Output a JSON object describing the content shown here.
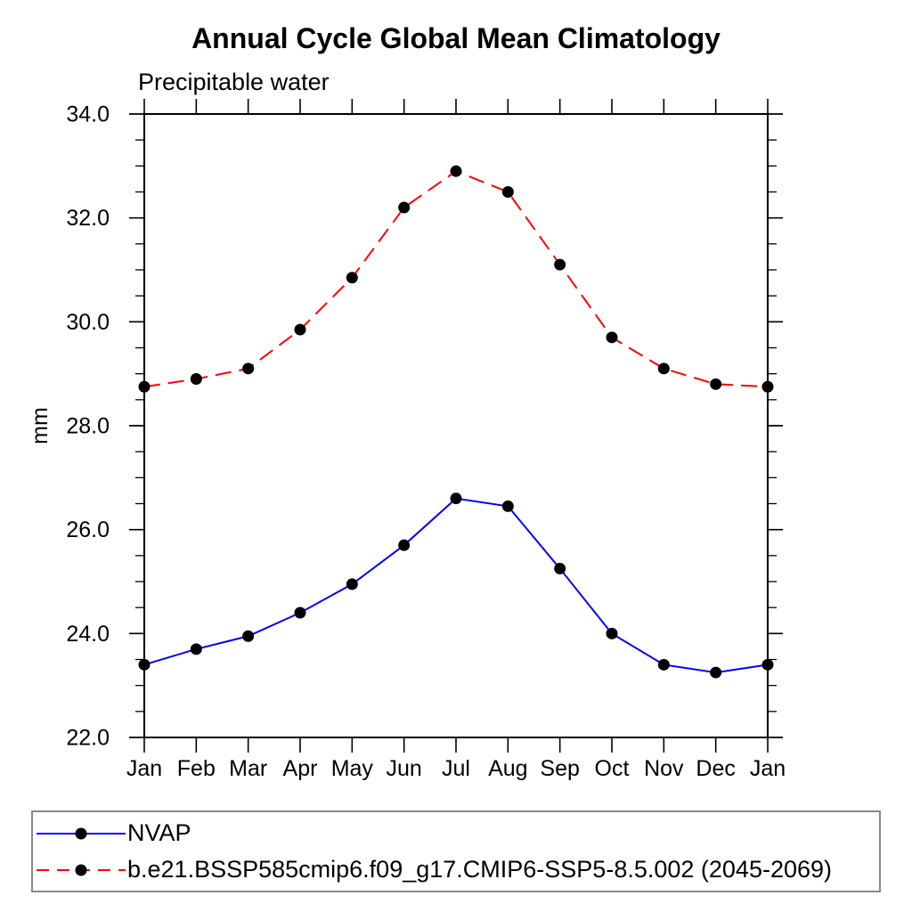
{
  "title": "Annual Cycle Global Mean Climatology",
  "subtitle": "Precipitable water",
  "y_axis": {
    "label": "mm",
    "tick_labels": [
      "22.0",
      "24.0",
      "26.0",
      "28.0",
      "30.0",
      "32.0",
      "34.0"
    ]
  },
  "x_axis": {
    "tick_labels": [
      "Jan",
      "Feb",
      "Mar",
      "Apr",
      "May",
      "Jun",
      "Jul",
      "Aug",
      "Sep",
      "Oct",
      "Nov",
      "Dec",
      "Jan"
    ]
  },
  "legend": {
    "items": [
      {
        "label": "NVAP",
        "color": "#0000ff",
        "line_style": "solid",
        "marker_color": "#000000"
      },
      {
        "label": "b.e21.BSSP585cmip6.f09_g17.CMIP6-SSP5-8.5.002 (2045-2069)",
        "color": "#ff0000",
        "line_style": "dashed",
        "marker_color": "#000000"
      }
    ]
  },
  "chart_data": {
    "type": "line",
    "x": [
      "Jan",
      "Feb",
      "Mar",
      "Apr",
      "May",
      "Jun",
      "Jul",
      "Aug",
      "Sep",
      "Oct",
      "Nov",
      "Dec",
      "Jan"
    ],
    "series": [
      {
        "name": "NVAP",
        "color": "#0000ff",
        "line_style": "solid",
        "marker": "filled-circle",
        "marker_color": "#000000",
        "values": [
          23.4,
          23.7,
          23.95,
          24.4,
          24.95,
          25.7,
          26.6,
          26.45,
          25.25,
          24.0,
          23.4,
          23.25,
          23.4
        ]
      },
      {
        "name": "b.e21.BSSP585cmip6.f09_g17.CMIP6-SSP5-8.5.002 (2045-2069)",
        "color": "#ff0000",
        "line_style": "dashed",
        "marker": "filled-circle",
        "marker_color": "#000000",
        "values": [
          28.75,
          28.9,
          29.1,
          29.85,
          30.85,
          32.2,
          32.9,
          32.5,
          31.1,
          29.7,
          29.1,
          28.8,
          28.75
        ]
      }
    ],
    "title": "Annual Cycle Global Mean Climatology",
    "subtitle": "Precipitable water",
    "xlabel": "",
    "ylabel": "mm",
    "ylim": [
      22.0,
      34.0
    ],
    "y_major_step": 2.0,
    "y_minor_step": 0.5,
    "grid": false,
    "legend_position": "bottom-left-box"
  }
}
